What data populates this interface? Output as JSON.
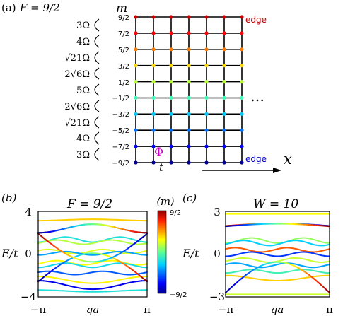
{
  "panel_a": {
    "label": "(a)",
    "spin_title": "F = 9/2",
    "m_axis_label": "m",
    "m_levels": [
      "9/2",
      "7/2",
      "5/2",
      "3/2",
      "1/2",
      "−1/2",
      "−3/2",
      "−5/2",
      "−7/2",
      "−9/2"
    ],
    "couplings": [
      "3Ω",
      "4Ω",
      "√21Ω",
      "2√6Ω",
      "5Ω",
      "2√6Ω",
      "√21Ω",
      "4Ω",
      "3Ω"
    ],
    "top_edge_label": "edge",
    "bottom_edge_label": "edge",
    "flux_label": "Φ",
    "hopping_label": "t",
    "ellipsis": "…",
    "x_axis_label": "x",
    "colors": {
      "top_edge": "#c00000",
      "bottom_edge": "#0000c8",
      "flux": "#c800c8",
      "level_colors": [
        "#c00000",
        "#ff0000",
        "#ff7a00",
        "#ffd800",
        "#b8ff3c",
        "#3cffb8",
        "#00c8ff",
        "#0070ff",
        "#0000ff",
        "#000096"
      ]
    }
  },
  "panel_b": {
    "label": "(b)",
    "title": "F = 9/2",
    "ylabel": "E/t",
    "xlabel": "qa",
    "y_ticks": [
      "4",
      "0",
      "−4"
    ],
    "x_ticks": [
      "−π",
      "π"
    ]
  },
  "colorbar": {
    "title": "⟨m⟩",
    "max_label": "9/2",
    "min_label": "−9/2"
  },
  "panel_c": {
    "label": "(c)",
    "title": "W = 10",
    "ylabel": "E/t",
    "xlabel": "qa",
    "y_ticks": [
      "3",
      "0",
      "−3"
    ],
    "x_ticks": [
      "−π",
      "π"
    ]
  }
}
